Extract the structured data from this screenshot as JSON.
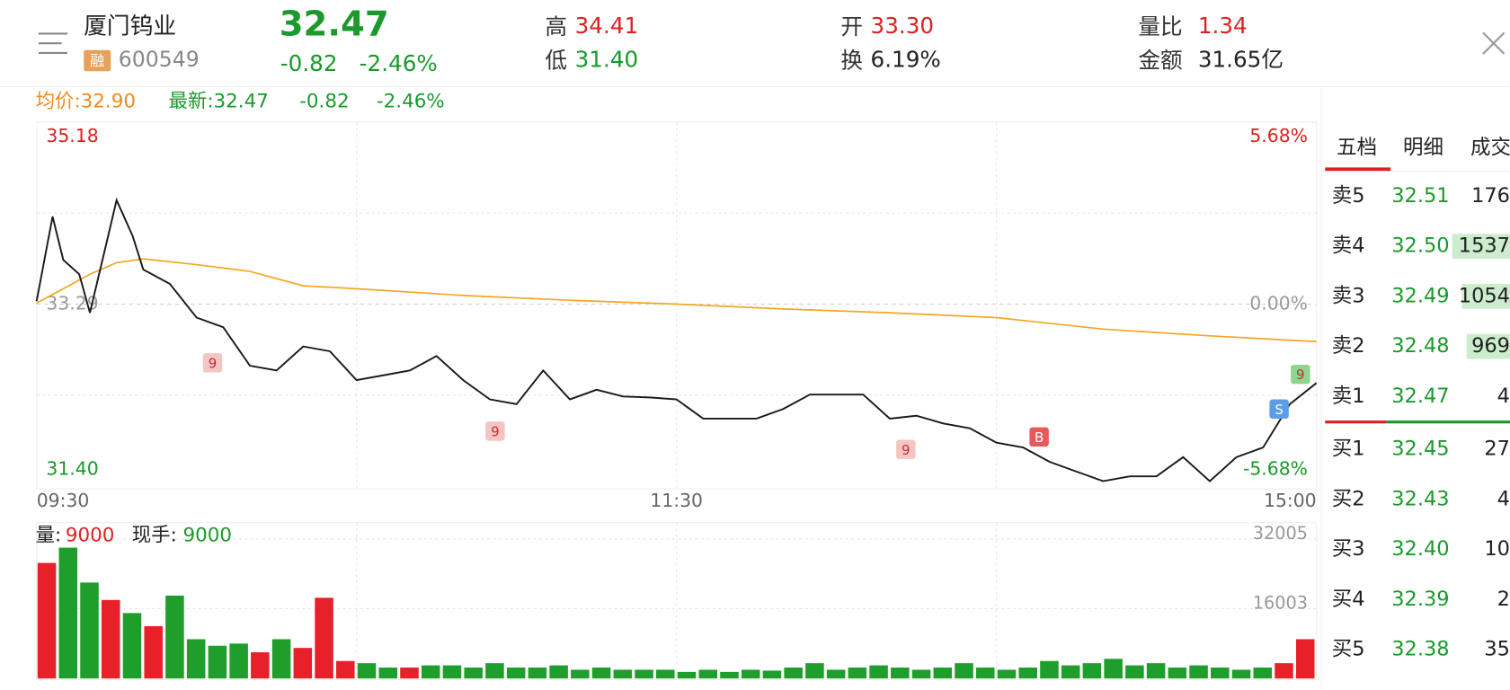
{
  "header": {
    "name": "厦门钨业",
    "tag": "融",
    "code": "600549",
    "price": "32.47",
    "change": "-0.82",
    "change_pct": "-2.46%",
    "high_label": "高",
    "high": "34.41",
    "low_label": "低",
    "low": "31.40",
    "open_label": "开",
    "open": "33.30",
    "turnover_label": "换",
    "turnover": "6.19%",
    "volume_ratio_label": "量比",
    "volume_ratio": "1.34",
    "amount_label": "金额",
    "amount": "31.65亿"
  },
  "summary": {
    "avg": "均价:32.90",
    "latest": "最新:32.47",
    "change": "-0.82",
    "change_pct": "-2.46%"
  },
  "chart_data": [
    {
      "type": "line",
      "xlim": [
        0,
        240
      ],
      "xticks": [
        {
          "value": 0,
          "label": "09:30"
        },
        {
          "value": 120,
          "label": "11:30"
        },
        {
          "value": 240,
          "label": "15:00"
        }
      ],
      "ylim": [
        31.4,
        35.18
      ],
      "yticks": [
        35.18,
        33.29,
        {
          "value": 31.4,
          "label": "31.40"
        }
      ],
      "y2lim": [
        -5.68,
        5.68
      ],
      "y2ticks": [
        {
          "value": 5.68,
          "label": "5.68%"
        },
        {
          "value": 0,
          "label": "0.00%"
        },
        {
          "value": -5.68,
          "label": "-5.68%"
        }
      ],
      "series": [
        {
          "color": "#1a1a1a",
          "x": [
            0,
            3,
            5,
            8,
            10,
            13,
            15,
            18,
            20,
            25,
            30,
            35,
            40,
            45,
            50,
            55,
            60,
            65,
            70,
            75,
            80,
            85,
            90,
            95,
            100,
            105,
            110,
            115,
            120,
            125,
            130,
            135,
            140,
            145,
            150,
            155,
            160,
            165,
            170,
            175,
            180,
            185,
            190,
            195,
            200,
            205,
            210,
            215,
            220,
            225,
            230,
            235,
            240
          ],
          "values": [
            33.32,
            34.2,
            33.75,
            33.6,
            33.2,
            33.9,
            34.37,
            34.0,
            33.65,
            33.5,
            33.15,
            33.05,
            32.65,
            32.6,
            32.85,
            32.8,
            32.5,
            32.55,
            32.6,
            32.75,
            32.5,
            32.3,
            32.25,
            32.6,
            32.3,
            32.4,
            32.33,
            32.32,
            32.3,
            32.1,
            32.1,
            32.1,
            32.2,
            32.35,
            32.35,
            32.35,
            32.1,
            32.13,
            32.05,
            32.0,
            31.85,
            31.8,
            31.65,
            31.55,
            31.45,
            31.5,
            31.5,
            31.7,
            31.45,
            31.7,
            31.8,
            32.25,
            32.47
          ]
        },
        {
          "color": "#f5a623",
          "x": [
            0,
            5,
            10,
            15,
            20,
            30,
            40,
            50,
            60,
            80,
            100,
            120,
            140,
            160,
            180,
            200,
            220,
            240
          ],
          "values": [
            33.3,
            33.45,
            33.6,
            33.72,
            33.76,
            33.7,
            33.63,
            33.48,
            33.45,
            33.38,
            33.33,
            33.29,
            33.24,
            33.2,
            33.15,
            33.03,
            32.96,
            32.9
          ]
        }
      ],
      "annotations": [
        {
          "x": 33,
          "y": 32.68,
          "label": "9",
          "color": "#f7c4c4"
        },
        {
          "x": 86,
          "y": 31.97,
          "label": "9",
          "color": "#f7c4c4"
        },
        {
          "x": 163,
          "y": 31.78,
          "label": "9",
          "color": "#f7c4c4"
        },
        {
          "x": 188,
          "y": 31.91,
          "label": "B",
          "color": "#e85a5a"
        },
        {
          "x": 233,
          "y": 32.2,
          "label": "S",
          "color": "#5b9ee8"
        },
        {
          "x": 237,
          "y": 32.56,
          "label": "9",
          "color": "#8fd48f"
        }
      ]
    },
    {
      "type": "bar",
      "volume_label": "量:",
      "volume": "9000",
      "hand_label": "现手:",
      "hand": "9000",
      "ylim": [
        0,
        32005
      ],
      "yticks": [
        16003,
        32005
      ],
      "palette": {
        "r": "#e8202a",
        "g": "#1f9e2c"
      },
      "values": [
        26500,
        30000,
        22000,
        18000,
        15000,
        12000,
        19000,
        9000,
        7500,
        8000,
        6000,
        9000,
        7000,
        18500,
        4000,
        3500,
        2500,
        2500,
        3000,
        3000,
        2500,
        3500,
        2500,
        2500,
        3000,
        2000,
        2500,
        2000,
        2000,
        2000,
        1500,
        2000,
        1500,
        2000,
        1800,
        2500,
        3500,
        2000,
        2500,
        3000,
        2500,
        2000,
        2500,
        3500,
        2500,
        2000,
        2500,
        4000,
        3000,
        3500,
        4500,
        3000,
        3500,
        2500,
        3000,
        2500,
        2000,
        2500,
        3500,
        9000
      ],
      "bar_colors": [
        "r",
        "g",
        "g",
        "r",
        "g",
        "r",
        "g",
        "g",
        "g",
        "g",
        "r",
        "g",
        "r",
        "r",
        "r",
        "g",
        "g",
        "r",
        "g",
        "g",
        "g",
        "g",
        "g",
        "g",
        "g",
        "g",
        "g",
        "g",
        "g",
        "g",
        "g",
        "g",
        "g",
        "g",
        "g",
        "g",
        "g",
        "g",
        "g",
        "g",
        "g",
        "g",
        "g",
        "g",
        "g",
        "g",
        "g",
        "g",
        "g",
        "g",
        "g",
        "g",
        "g",
        "g",
        "g",
        "g",
        "g",
        "g",
        "r",
        "r"
      ]
    }
  ],
  "order_book": {
    "tabs": [
      "五档",
      "明细",
      "成交"
    ],
    "asks": [
      [
        "卖5",
        "32.51",
        "176"
      ],
      [
        "卖4",
        "32.50",
        "1537"
      ],
      [
        "卖3",
        "32.49",
        "1054"
      ],
      [
        "卖2",
        "32.48",
        "969"
      ],
      [
        "卖1",
        "32.47",
        "4"
      ]
    ],
    "bids": [
      [
        "买1",
        "32.45",
        "27"
      ],
      [
        "买2",
        "32.43",
        "4"
      ],
      [
        "买3",
        "32.40",
        "10"
      ],
      [
        "买4",
        "32.39",
        "2"
      ],
      [
        "买5",
        "32.38",
        "35"
      ]
    ]
  }
}
